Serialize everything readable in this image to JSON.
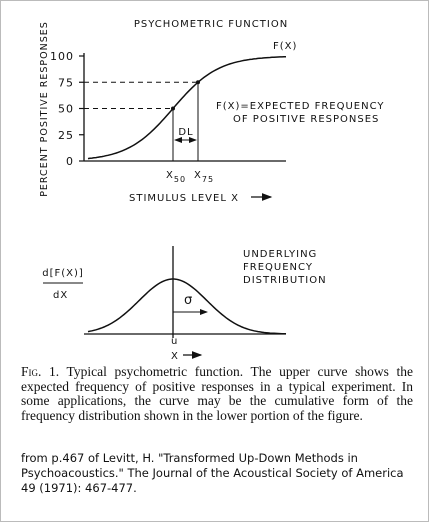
{
  "top_plot": {
    "title": "PSYCHOMETRIC FUNCTION",
    "y_label": "PERCENT POSITIVE RESPONSES",
    "ylim": [
      0,
      100
    ],
    "yticks": [
      0,
      25,
      50,
      75,
      100
    ],
    "x_label": "STIMULUS LEVEL X",
    "curve_label": "F(X)",
    "annotation": [
      "F(X)=EXPECTED FREQUENCY",
      "OF POSITIVE RESPONSES"
    ],
    "dl_label": "DL",
    "x50": {
      "text": "X",
      "sub": "50"
    },
    "x75": {
      "text": "X",
      "sub": "75"
    }
  },
  "bottom_plot": {
    "y_label_num": "d[F(X)]",
    "y_label_den": "dX",
    "annotation": [
      "UNDERLYING",
      "FREQUENCY",
      "DISTRIBUTION"
    ],
    "sigma_label": "σ",
    "u_label": "u",
    "x_label": "X"
  },
  "caption": {
    "label": "Fig. 1.",
    "text": "Typical psychometric function. The upper curve shows the expected frequency of positive responses in a typical experiment. In some applications, the curve may be the cumulative form of the frequency distribution shown in the lower portion of the figure."
  },
  "source": "from p.467 of Levitt, H. \"Transformed Up-Down Methods in Psychoacoustics.\" The Journal of the Acoustical Society of America 49 (1971): 467-477."
}
